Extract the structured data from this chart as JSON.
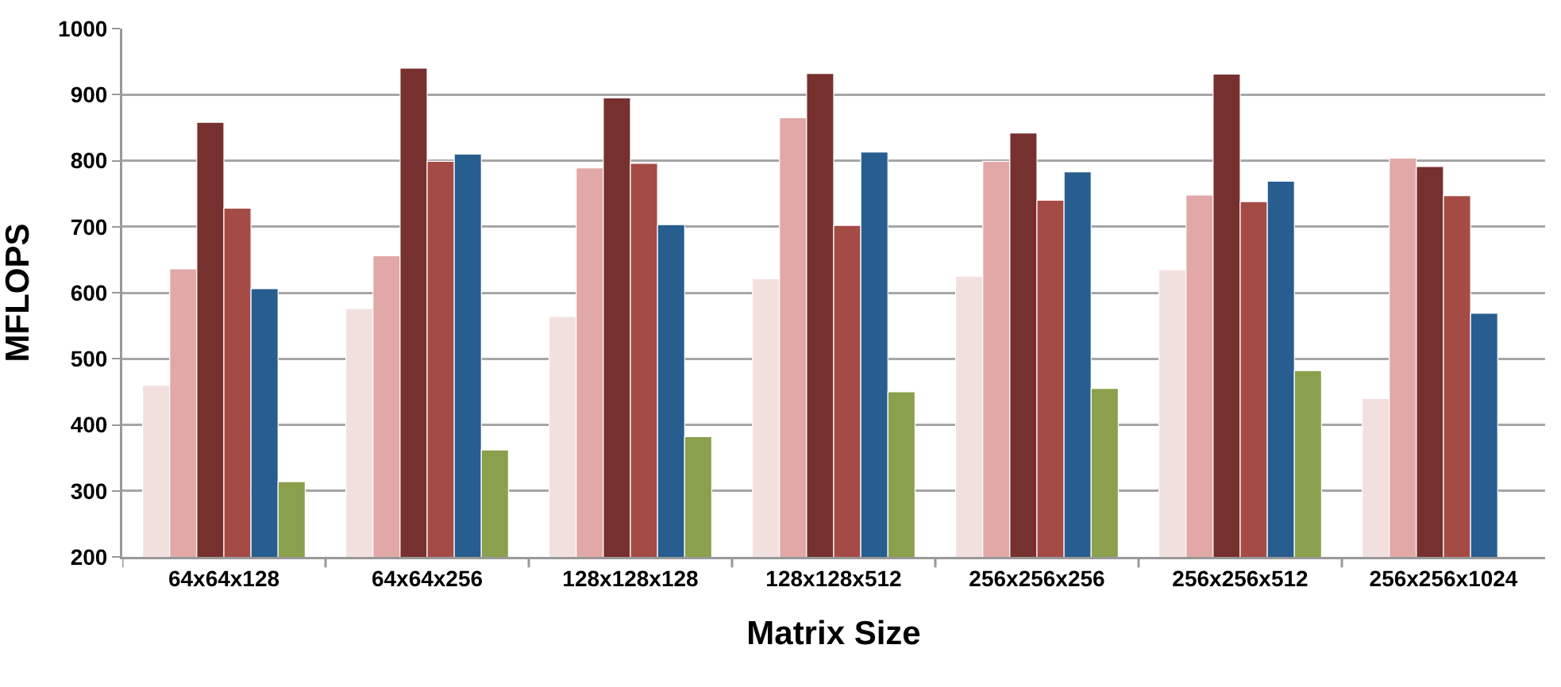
{
  "chart_data": {
    "type": "bar",
    "xlabel": "Matrix Size",
    "ylabel": "MFLOPS",
    "categories": [
      "64x64x128",
      "64x64x256",
      "128x128x128",
      "128x128x512",
      "256x256x256",
      "256x256x512",
      "256x256x1024"
    ],
    "series": [
      {
        "color": "#f2e0df",
        "values": [
          460,
          576,
          564,
          621,
          625,
          635,
          440
        ]
      },
      {
        "color": "#e1a8a7",
        "values": [
          636,
          656,
          789,
          865,
          799,
          748,
          804
        ]
      },
      {
        "color": "#76302e",
        "values": [
          858,
          940,
          895,
          932,
          842,
          931,
          791
        ]
      },
      {
        "color": "#a54b45",
        "values": [
          728,
          799,
          796,
          702,
          740,
          738,
          747
        ]
      },
      {
        "color": "#275d8f",
        "values": [
          606,
          810,
          703,
          813,
          783,
          769,
          569
        ]
      },
      {
        "color": "#8aa04c",
        "values": [
          314,
          362,
          382,
          450,
          455,
          482,
          null
        ]
      }
    ],
    "ylim": [
      200,
      1000
    ],
    "yticks": [
      200,
      300,
      400,
      500,
      600,
      700,
      800,
      900,
      1000
    ],
    "grid": "y"
  }
}
